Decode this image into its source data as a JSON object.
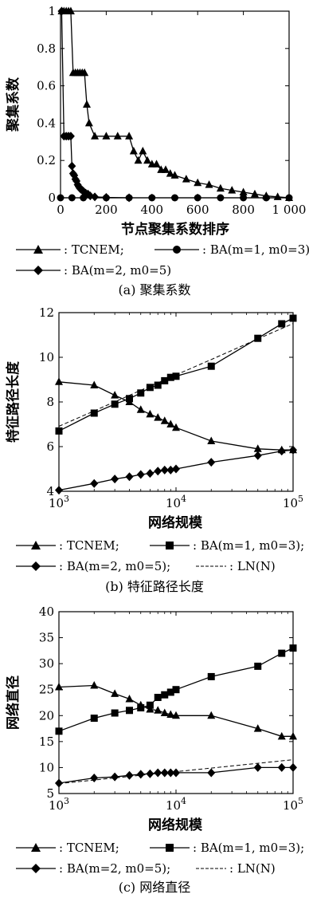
{
  "legend_labels": {
    "tcnem": ": TCNEM;",
    "ba1": ": BA(m=1, m0=3);",
    "ba2": ": BA(m=2, m0=5)",
    "ba2_semi": ": BA(m=2, m0=5);",
    "ln": ": LN(N)"
  },
  "chart_data": [
    {
      "type": "line",
      "caption": "(a) 聚集系数",
      "xlabel": "节点聚集系数排序",
      "ylabel": "聚集系数",
      "xlim": [
        0,
        1000
      ],
      "ylim": [
        0,
        1
      ],
      "x_ticks": [
        "0",
        "200",
        "400",
        "600",
        "800",
        "1 000"
      ],
      "y_ticks": [
        "0",
        "0.2",
        "0.4",
        "0.6",
        "0.8",
        "1"
      ],
      "legend": [
        ": TCNEM;",
        ": BA(m=1, m0=3);",
        ": BA(m=2, m0=5)"
      ],
      "series": [
        {
          "name": "TCNEM",
          "marker": "triangle",
          "x": [
            5,
            15,
            25,
            35,
            45,
            55,
            65,
            75,
            85,
            95,
            105,
            115,
            125,
            150,
            200,
            250,
            300,
            320,
            340,
            360,
            380,
            400,
            420,
            440,
            460,
            480,
            500,
            550,
            600,
            650,
            700,
            750,
            800,
            850,
            900,
            950,
            1000
          ],
          "y": [
            1,
            1,
            1,
            1,
            1,
            0.67,
            0.67,
            0.67,
            0.67,
            0.67,
            0.67,
            0.5,
            0.4,
            0.33,
            0.33,
            0.33,
            0.33,
            0.25,
            0.2,
            0.25,
            0.2,
            0.18,
            0.18,
            0.15,
            0.15,
            0.13,
            0.12,
            0.1,
            0.08,
            0.07,
            0.05,
            0.04,
            0.03,
            0.02,
            0.01,
            0.005,
            0
          ]
        },
        {
          "name": "BA(m=1, m0=3)",
          "marker": "circle",
          "x": [
            0,
            50,
            100,
            200,
            300,
            400,
            500,
            600,
            700,
            800,
            900,
            1000
          ],
          "y": [
            0,
            0,
            0,
            0,
            0,
            0,
            0,
            0,
            0,
            0,
            0,
            0
          ]
        },
        {
          "name": "BA(m=2, m0=5)",
          "marker": "diamond",
          "x": [
            5,
            15,
            25,
            35,
            45,
            50,
            55,
            60,
            65,
            70,
            75,
            80,
            85,
            90,
            95,
            100,
            110,
            120,
            130,
            150,
            200,
            300
          ],
          "y": [
            1,
            0.33,
            0.33,
            0.33,
            0.33,
            0.17,
            0.13,
            0.12,
            0.1,
            0.09,
            0.07,
            0.06,
            0.05,
            0.045,
            0.04,
            0.035,
            0.025,
            0.02,
            0.01,
            0.005,
            0.002,
            0
          ]
        }
      ]
    },
    {
      "type": "line",
      "caption": "(b) 特征路径长度",
      "xlabel": "网络规模",
      "ylabel": "特征路径长度",
      "xscale": "log",
      "xlim": [
        1000,
        100000
      ],
      "ylim": [
        4,
        12
      ],
      "x_ticks": [
        "10^3",
        "10^4",
        "10^5"
      ],
      "y_ticks": [
        "4",
        "6",
        "8",
        "10",
        "12"
      ],
      "legend": [
        ": TCNEM;",
        ": BA(m=1, m0=3);",
        ": BA(m=2, m0=5);",
        ": LN(N)"
      ],
      "series": [
        {
          "name": "TCNEM",
          "marker": "triangle",
          "x": [
            1000,
            2000,
            3000,
            4000,
            5000,
            6000,
            7000,
            8000,
            9000,
            10000,
            20000,
            50000,
            80000,
            100000
          ],
          "y": [
            8.9,
            8.75,
            8.3,
            8.0,
            7.65,
            7.45,
            7.3,
            7.15,
            7.0,
            6.85,
            6.25,
            5.9,
            5.85,
            5.85
          ]
        },
        {
          "name": "BA(m=1, m0=3)",
          "marker": "square",
          "x": [
            1000,
            2000,
            3000,
            4000,
            5000,
            6000,
            7000,
            8000,
            9000,
            10000,
            20000,
            50000,
            80000,
            100000
          ],
          "y": [
            6.7,
            7.5,
            7.9,
            8.15,
            8.4,
            8.65,
            8.75,
            8.95,
            9.1,
            9.15,
            9.6,
            10.85,
            11.5,
            11.75
          ]
        },
        {
          "name": "BA(m=2, m0=5)",
          "marker": "diamond",
          "x": [
            1000,
            2000,
            3000,
            4000,
            5000,
            6000,
            7000,
            8000,
            9000,
            10000,
            20000,
            50000,
            80000,
            100000
          ],
          "y": [
            4.05,
            4.35,
            4.55,
            4.65,
            4.75,
            4.8,
            4.9,
            4.95,
            4.95,
            5.0,
            5.3,
            5.6,
            5.8,
            5.85
          ]
        },
        {
          "name": "LN(N)",
          "marker": "none",
          "dash": true,
          "x": [
            1000,
            2000,
            5000,
            10000,
            20000,
            50000,
            100000
          ],
          "y": [
            6.91,
            7.6,
            8.52,
            9.21,
            9.9,
            10.82,
            11.51
          ]
        }
      ]
    },
    {
      "type": "line",
      "caption": "(c) 网络直径",
      "xlabel": "网络规模",
      "ylabel": "网络直径",
      "xscale": "log",
      "xlim": [
        1000,
        100000
      ],
      "ylim": [
        5,
        40
      ],
      "x_ticks": [
        "10^3",
        "10^4",
        "10^5"
      ],
      "y_ticks": [
        "5",
        "10",
        "15",
        "20",
        "25",
        "30",
        "35",
        "40"
      ],
      "legend": [
        ": TCNEM;",
        ": BA(m=1, m0=3);",
        ": BA(m=2, m0=5);",
        ": LN(N)"
      ],
      "series": [
        {
          "name": "TCNEM",
          "marker": "triangle",
          "x": [
            1000,
            2000,
            3000,
            4000,
            5000,
            6000,
            7000,
            8000,
            9000,
            10000,
            20000,
            50000,
            80000,
            100000
          ],
          "y": [
            25.5,
            25.8,
            24.2,
            23.2,
            22,
            21.2,
            21,
            20.5,
            20.2,
            20,
            20,
            17.5,
            16,
            16
          ]
        },
        {
          "name": "BA(m=1, m0=3)",
          "marker": "square",
          "x": [
            1000,
            2000,
            3000,
            4000,
            5000,
            6000,
            7000,
            8000,
            9000,
            10000,
            20000,
            50000,
            80000,
            100000
          ],
          "y": [
            17,
            19.5,
            20.5,
            21,
            21.5,
            22,
            23.5,
            24,
            24.5,
            25,
            27.5,
            29.5,
            32,
            33
          ]
        },
        {
          "name": "BA(m=2, m0=5)",
          "marker": "diamond",
          "x": [
            1000,
            2000,
            3000,
            4000,
            5000,
            6000,
            7000,
            8000,
            9000,
            10000,
            20000,
            50000,
            80000,
            100000
          ],
          "y": [
            7,
            8,
            8.2,
            8.5,
            8.7,
            8.8,
            9,
            9,
            9,
            9,
            9,
            10,
            10,
            10
          ]
        },
        {
          "name": "LN(N)",
          "marker": "none",
          "dash": true,
          "x": [
            1000,
            2000,
            5000,
            10000,
            20000,
            50000,
            100000
          ],
          "y": [
            6.91,
            7.6,
            8.52,
            9.21,
            9.9,
            10.82,
            11.51
          ]
        }
      ]
    }
  ]
}
